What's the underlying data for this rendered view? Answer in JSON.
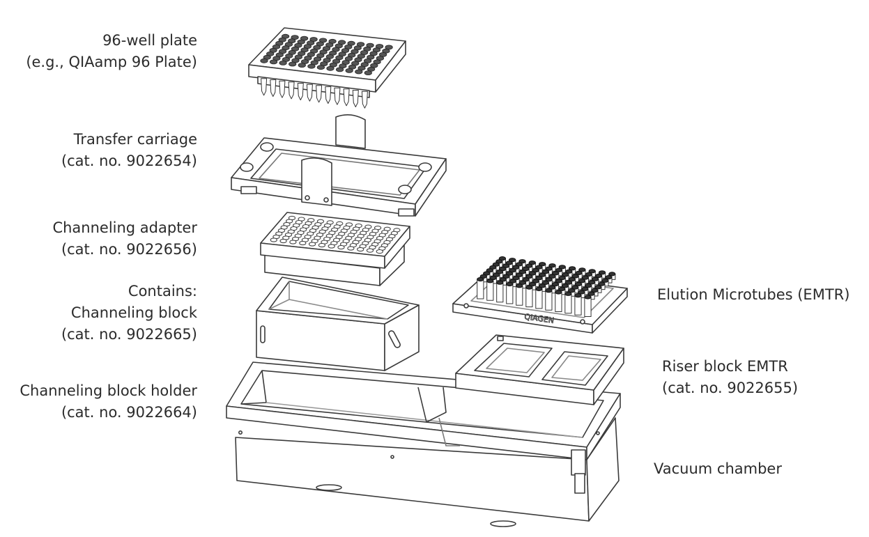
{
  "labels": {
    "plate": {
      "line1": "96-well plate",
      "line2": "(e.g., QIAamp 96 Plate)"
    },
    "carriage": {
      "line1": "Transfer carriage",
      "line2": "(cat. no. 9022654)"
    },
    "adapter": {
      "line1": "Channeling adapter",
      "line2": "(cat. no. 9022656)"
    },
    "block": {
      "line1": "Contains:",
      "line2": "Channeling block",
      "line3": "(cat. no. 9022665)"
    },
    "holder": {
      "line1": "Channeling block holder",
      "line2": "(cat. no. 9022664)"
    },
    "emtr": {
      "line1": "Elution Microtubes (EMTR)"
    },
    "riser": {
      "line1": "Riser block EMTR",
      "line2": "(cat. no. 9022655)"
    },
    "chamber": {
      "line1": "Vacuum chamber"
    }
  },
  "brand_text": "QIAGEN"
}
